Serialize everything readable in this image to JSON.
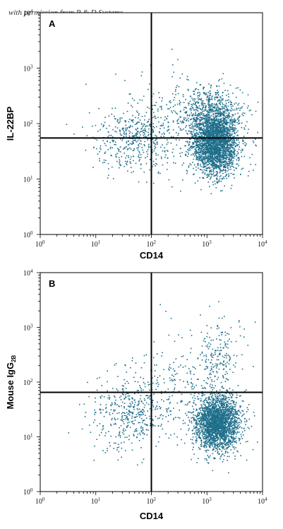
{
  "credit": "with permission from R & D Systems",
  "colors": {
    "dots": "#1f6f8b",
    "axis": "#000000",
    "gate": "#000000"
  },
  "chart_data": [
    {
      "type": "scatter",
      "panel_label": "A",
      "xlabel": "CD14",
      "ylabel": "IL-22BP",
      "x_scale": "log",
      "y_scale": "log",
      "xlim": [
        1,
        10000
      ],
      "ylim": [
        1,
        10000
      ],
      "x_ticks": [
        {
          "base": "10",
          "exp": "0"
        },
        {
          "base": "10",
          "exp": "1"
        },
        {
          "base": "10",
          "exp": "2"
        },
        {
          "base": "10",
          "exp": "3"
        },
        {
          "base": "10",
          "exp": "4"
        }
      ],
      "y_ticks": [
        {
          "base": "10",
          "exp": "0"
        },
        {
          "base": "10",
          "exp": "1"
        },
        {
          "base": "10",
          "exp": "2"
        },
        {
          "base": "10",
          "exp": "3"
        },
        {
          "base": "10",
          "exp": "4"
        }
      ],
      "gate": {
        "x": 100,
        "y": 55
      },
      "populations": [
        {
          "desc": "main",
          "cx": 1400,
          "cy": 45,
          "sx": 0.2,
          "sy": 0.28,
          "n": 2600
        },
        {
          "desc": "upper",
          "cx": 1100,
          "cy": 150,
          "sx": 0.3,
          "sy": 0.25,
          "n": 650
        },
        {
          "desc": "left",
          "cx": 45,
          "cy": 50,
          "sx": 0.35,
          "sy": 0.28,
          "n": 420
        },
        {
          "desc": "sparse",
          "cx": 250,
          "cy": 120,
          "sx": 0.55,
          "sy": 0.45,
          "n": 260
        }
      ]
    },
    {
      "type": "scatter",
      "panel_label": "B",
      "xlabel": "CD14",
      "ylabel": "Mouse IgG",
      "ylabel_sub": "2B",
      "x_scale": "log",
      "y_scale": "log",
      "xlim": [
        1,
        10000
      ],
      "ylim": [
        1,
        10000
      ],
      "x_ticks": [
        {
          "base": "10",
          "exp": "0"
        },
        {
          "base": "10",
          "exp": "1"
        },
        {
          "base": "10",
          "exp": "2"
        },
        {
          "base": "10",
          "exp": "3"
        },
        {
          "base": "10",
          "exp": "4"
        }
      ],
      "y_ticks": [
        {
          "base": "10",
          "exp": "0"
        },
        {
          "base": "10",
          "exp": "1"
        },
        {
          "base": "10",
          "exp": "2"
        },
        {
          "base": "10",
          "exp": "3"
        },
        {
          "base": "10",
          "exp": "4"
        }
      ],
      "gate": {
        "x": 100,
        "y": 65
      },
      "populations": [
        {
          "desc": "main",
          "cx": 1500,
          "cy": 18,
          "sx": 0.2,
          "sy": 0.25,
          "n": 2400
        },
        {
          "desc": "upper",
          "cx": 1600,
          "cy": 300,
          "sx": 0.2,
          "sy": 0.35,
          "n": 200
        },
        {
          "desc": "left",
          "cx": 40,
          "cy": 25,
          "sx": 0.35,
          "sy": 0.3,
          "n": 380
        },
        {
          "desc": "sparse",
          "cx": 200,
          "cy": 80,
          "sx": 0.55,
          "sy": 0.45,
          "n": 260
        }
      ]
    }
  ]
}
